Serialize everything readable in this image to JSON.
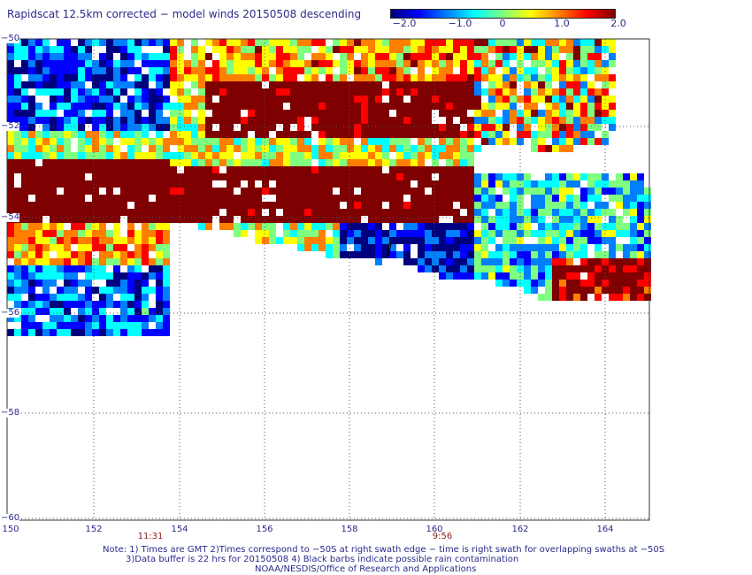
{
  "title": "Rapidscat 12.5km corrected − model winds 20150508 descending",
  "colorbar": {
    "ticks": [
      "−2.0",
      "−1.0",
      "0",
      "1.0",
      "2.0"
    ],
    "range": [
      -2.0,
      2.0
    ],
    "colors": [
      "#00007f",
      "#0000ff",
      "#007fff",
      "#00ffff",
      "#7fff7f",
      "#ffff00",
      "#ff7f00",
      "#ff0000",
      "#7f0000"
    ]
  },
  "map": {
    "lat_labels": [
      "−50",
      "−52",
      "−54",
      "−56",
      "−58",
      "−60"
    ],
    "lon_labels": [
      "150",
      "152",
      "154",
      "156",
      "158",
      "160",
      "162",
      "164"
    ],
    "lat_range": [
      -60,
      -50
    ],
    "lon_range": [
      150,
      165
    ]
  },
  "swath_times": [
    {
      "time": "11:31",
      "lon": 153.2
    },
    {
      "time": "9:56",
      "lon": 160.2
    }
  ],
  "notes": [
    "Note: 1) Times are GMT 2)Times correspond to −50S at right swath edge − time is right swath for overlapping swaths at −50S",
    "3)Data buffer is 22 hrs for 20150508 4) Black barbs indicate possible rain contamination",
    "NOAA/NESDIS/Office of Research and Applications"
  ],
  "rain_flag_icon": "wind-barb-icon"
}
